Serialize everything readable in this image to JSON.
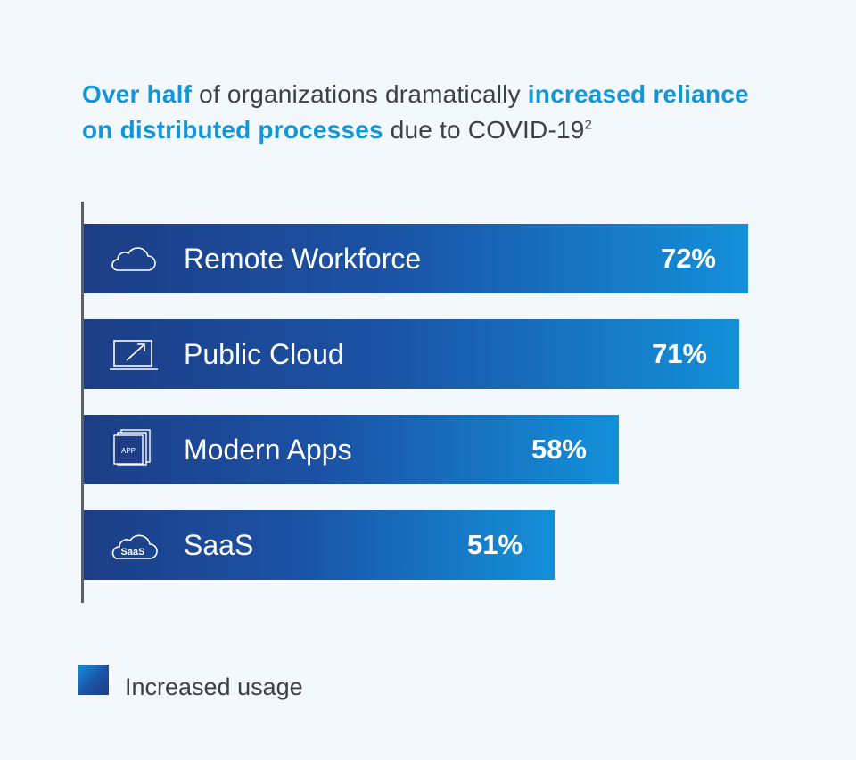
{
  "title": {
    "part1": "Over half",
    "part2": " of organizations dramatically ",
    "part3": "increased reliance on distributed processes",
    "part4": " due to COVID-19",
    "footnote": "2"
  },
  "legend": {
    "label": "Increased usage"
  },
  "colors": {
    "accent": "#1496d6",
    "bar_dark": "#1d3e86",
    "bar_light": "#1390d9",
    "text": "#3b3f47"
  },
  "chart_data": {
    "type": "bar",
    "orientation": "horizontal",
    "categories": [
      "Remote Workforce",
      "Public Cloud",
      "Modern Apps",
      "SaaS"
    ],
    "icons": [
      "cloud-icon",
      "laptop-icon",
      "app-stack-icon",
      "saas-cloud-icon"
    ],
    "values": [
      72,
      71,
      58,
      51
    ],
    "value_labels": [
      "72%",
      "71%",
      "58%",
      "51%"
    ],
    "series": [
      {
        "name": "Increased usage",
        "values": [
          72,
          71,
          58,
          51
        ]
      }
    ],
    "grid": false,
    "legend_position": "bottom-left"
  }
}
